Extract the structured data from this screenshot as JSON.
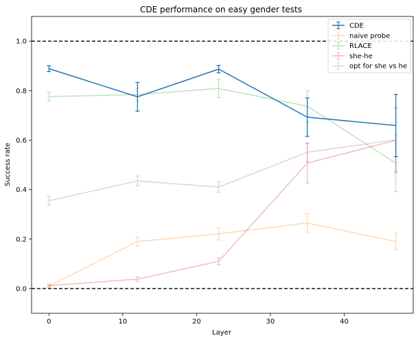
{
  "chart_data": {
    "type": "line",
    "title": "CDE performance on easy gender tests",
    "xlabel": "Layer",
    "ylabel": "Success rate",
    "xlim": [
      -2.35,
      49.35
    ],
    "ylim": [
      -0.1,
      1.1
    ],
    "xticks": [
      0,
      10,
      20,
      30,
      40
    ],
    "yticks": [
      0.0,
      0.2,
      0.4,
      0.6,
      0.8,
      1.0
    ],
    "x": [
      0,
      12,
      23,
      35,
      47
    ],
    "reference_lines": [
      1.0,
      0.0
    ],
    "legend_position": "upper-right",
    "series": [
      {
        "name": "CDE",
        "color": "#1f77b4",
        "opacity": 1.0,
        "values": [
          0.889,
          0.775,
          0.887,
          0.693,
          0.659
        ],
        "errors": [
          0.012,
          0.058,
          0.015,
          0.078,
          0.126
        ]
      },
      {
        "name": "naive probe",
        "color": "#ff7f0e",
        "opacity": 0.3,
        "values": [
          0.01,
          0.19,
          0.221,
          0.265,
          0.19
        ],
        "errors": [
          0.006,
          0.018,
          0.025,
          0.037,
          0.033
        ]
      },
      {
        "name": "RLACE",
        "color": "#2ca02c",
        "opacity": 0.3,
        "values": [
          0.776,
          0.784,
          0.809,
          0.737,
          0.507
        ],
        "errors": [
          0.018,
          0.025,
          0.037,
          0.063,
          0.115
        ]
      },
      {
        "name": "she-he",
        "color": "#d62728",
        "opacity": 0.3,
        "values": [
          0.012,
          0.038,
          0.11,
          0.507,
          0.599
        ],
        "errors": [
          0.004,
          0.009,
          0.014,
          0.08,
          0.131
        ]
      },
      {
        "name": "opt for she vs he",
        "color": "#9467bd",
        "opacity": 0.3,
        "values": [
          0.355,
          0.435,
          0.41,
          0.551,
          0.601
        ],
        "errors": [
          0.018,
          0.02,
          0.021,
          0.038,
          0.127
        ]
      }
    ]
  }
}
